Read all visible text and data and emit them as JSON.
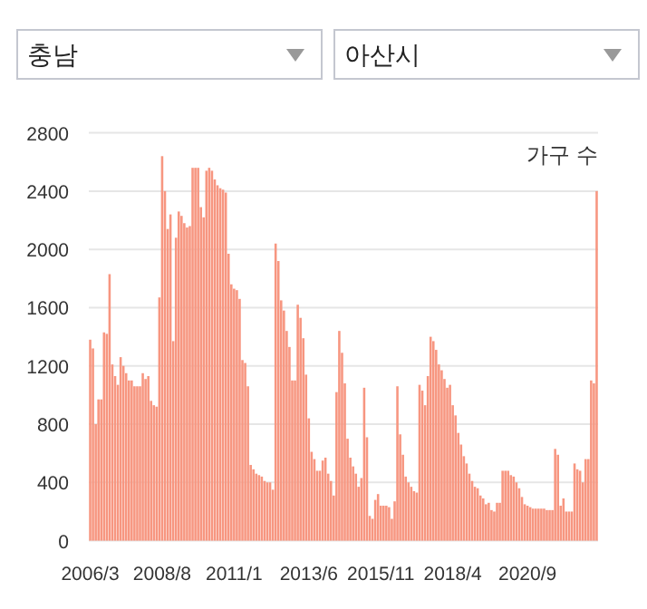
{
  "chart_data": {
    "type": "bar",
    "ylabel": "가구 수",
    "annotations": [
      "충남",
      "아산시"
    ],
    "color": "#f79680",
    "ylim": [
      0,
      2800
    ],
    "yticks": [
      0,
      400,
      800,
      1200,
      1600,
      2000,
      2400,
      2800
    ],
    "grid": "y",
    "categories": [
      "2006/3",
      null,
      null,
      null,
      null,
      null,
      null,
      null,
      null,
      null,
      null,
      null,
      null,
      null,
      null,
      null,
      null,
      null,
      null,
      null,
      null,
      null,
      null,
      null,
      null,
      null,
      "2008/8",
      null,
      null,
      null,
      null,
      null,
      null,
      null,
      null,
      null,
      null,
      null,
      null,
      null,
      null,
      null,
      null,
      null,
      null,
      null,
      null,
      null,
      null,
      null,
      null,
      null,
      "2011/1",
      null,
      null,
      null,
      null,
      null,
      null,
      null,
      null,
      null,
      null,
      null,
      null,
      null,
      null,
      null,
      null,
      null,
      null,
      null,
      null,
      null,
      null,
      null,
      null,
      null,
      null,
      "2013/6",
      null,
      null,
      null,
      null,
      null,
      null,
      null,
      null,
      null,
      null,
      null,
      null,
      null,
      null,
      null,
      null,
      null,
      null,
      null,
      null,
      null,
      null,
      null,
      null,
      null,
      "2015/11",
      null,
      null,
      null,
      null,
      null,
      null,
      null,
      null,
      null,
      null,
      null,
      null,
      null,
      null,
      null,
      null,
      null,
      null,
      null,
      null,
      null,
      null,
      null,
      null,
      null,
      "2018/4",
      null,
      null,
      null,
      null,
      null,
      null,
      null,
      null,
      null,
      null,
      null,
      null,
      null,
      null,
      null,
      null,
      null,
      null,
      null,
      null,
      null,
      null,
      null,
      null,
      null,
      null,
      "2020/9",
      null,
      null,
      null,
      null,
      null,
      null,
      null,
      null,
      null,
      null,
      null,
      null,
      null,
      null,
      null,
      null,
      null,
      null,
      null,
      null,
      null,
      null,
      null,
      null,
      null
    ],
    "values": [
      1380,
      1320,
      800,
      970,
      970,
      1430,
      1420,
      1830,
      1210,
      1130,
      1070,
      1260,
      1200,
      1150,
      1100,
      1100,
      1060,
      1060,
      1060,
      1150,
      1110,
      1130,
      960,
      930,
      920,
      1670,
      2640,
      2400,
      2140,
      2240,
      1370,
      2080,
      2260,
      2230,
      2180,
      2150,
      2160,
      2560,
      2560,
      2560,
      2290,
      2220,
      2540,
      2560,
      2540,
      2480,
      2440,
      2420,
      2410,
      2390,
      1970,
      1760,
      1730,
      1720,
      1660,
      1240,
      1220,
      1060,
      520,
      490,
      460,
      450,
      440,
      410,
      400,
      400,
      350,
      2040,
      1920,
      1650,
      1580,
      1440,
      1330,
      1100,
      1100,
      1620,
      1530,
      1390,
      1140,
      840,
      610,
      560,
      480,
      480,
      550,
      570,
      460,
      410,
      310,
      1020,
      1440,
      1290,
      1080,
      700,
      570,
      510,
      460,
      370,
      430,
      1050,
      710,
      170,
      150,
      280,
      320,
      240,
      240,
      240,
      230,
      150,
      270,
      1060,
      730,
      590,
      440,
      400,
      370,
      340,
      330,
      1070,
      1030,
      930,
      1130,
      1400,
      1370,
      1310,
      1210,
      1170,
      1110,
      1050,
      1070,
      930,
      860,
      740,
      660,
      580,
      530,
      460,
      410,
      370,
      360,
      310,
      290,
      250,
      260,
      210,
      200,
      260,
      260,
      480,
      480,
      480,
      450,
      440,
      400,
      360,
      300,
      250,
      240,
      230,
      220,
      220,
      220,
      220,
      220,
      210,
      210,
      210,
      630,
      590,
      240,
      290,
      200,
      200,
      200,
      530,
      490,
      480,
      400,
      560,
      560,
      1100,
      1080,
      2400
    ]
  }
}
